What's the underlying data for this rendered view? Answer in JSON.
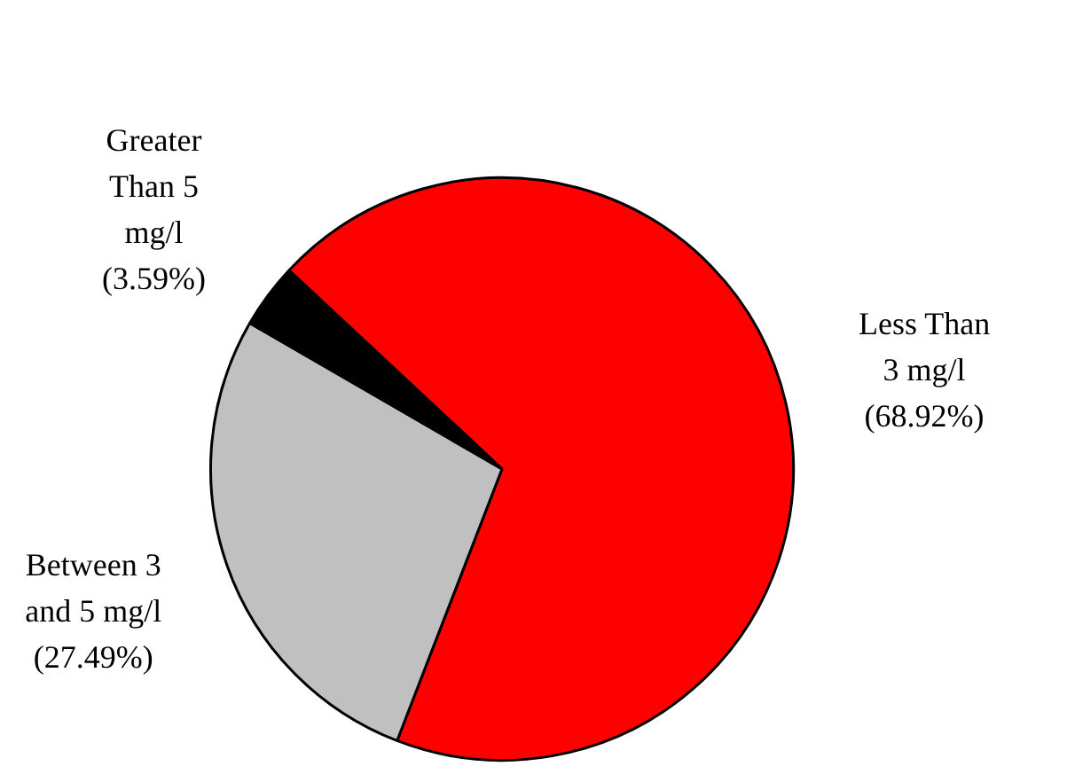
{
  "chart_data": {
    "type": "pie",
    "categories": [
      "Less Than 3 mg/l",
      "Between 3 and 5 mg/l",
      "Greater Than 5 mg/l"
    ],
    "values": [
      68.92,
      27.49,
      3.59
    ],
    "value_labels": [
      "(68.92%)",
      "(27.49%)",
      "(3.59%)"
    ],
    "colors": [
      "#ff0000",
      "#c0c0c0",
      "#000000"
    ],
    "legend": false
  }
}
